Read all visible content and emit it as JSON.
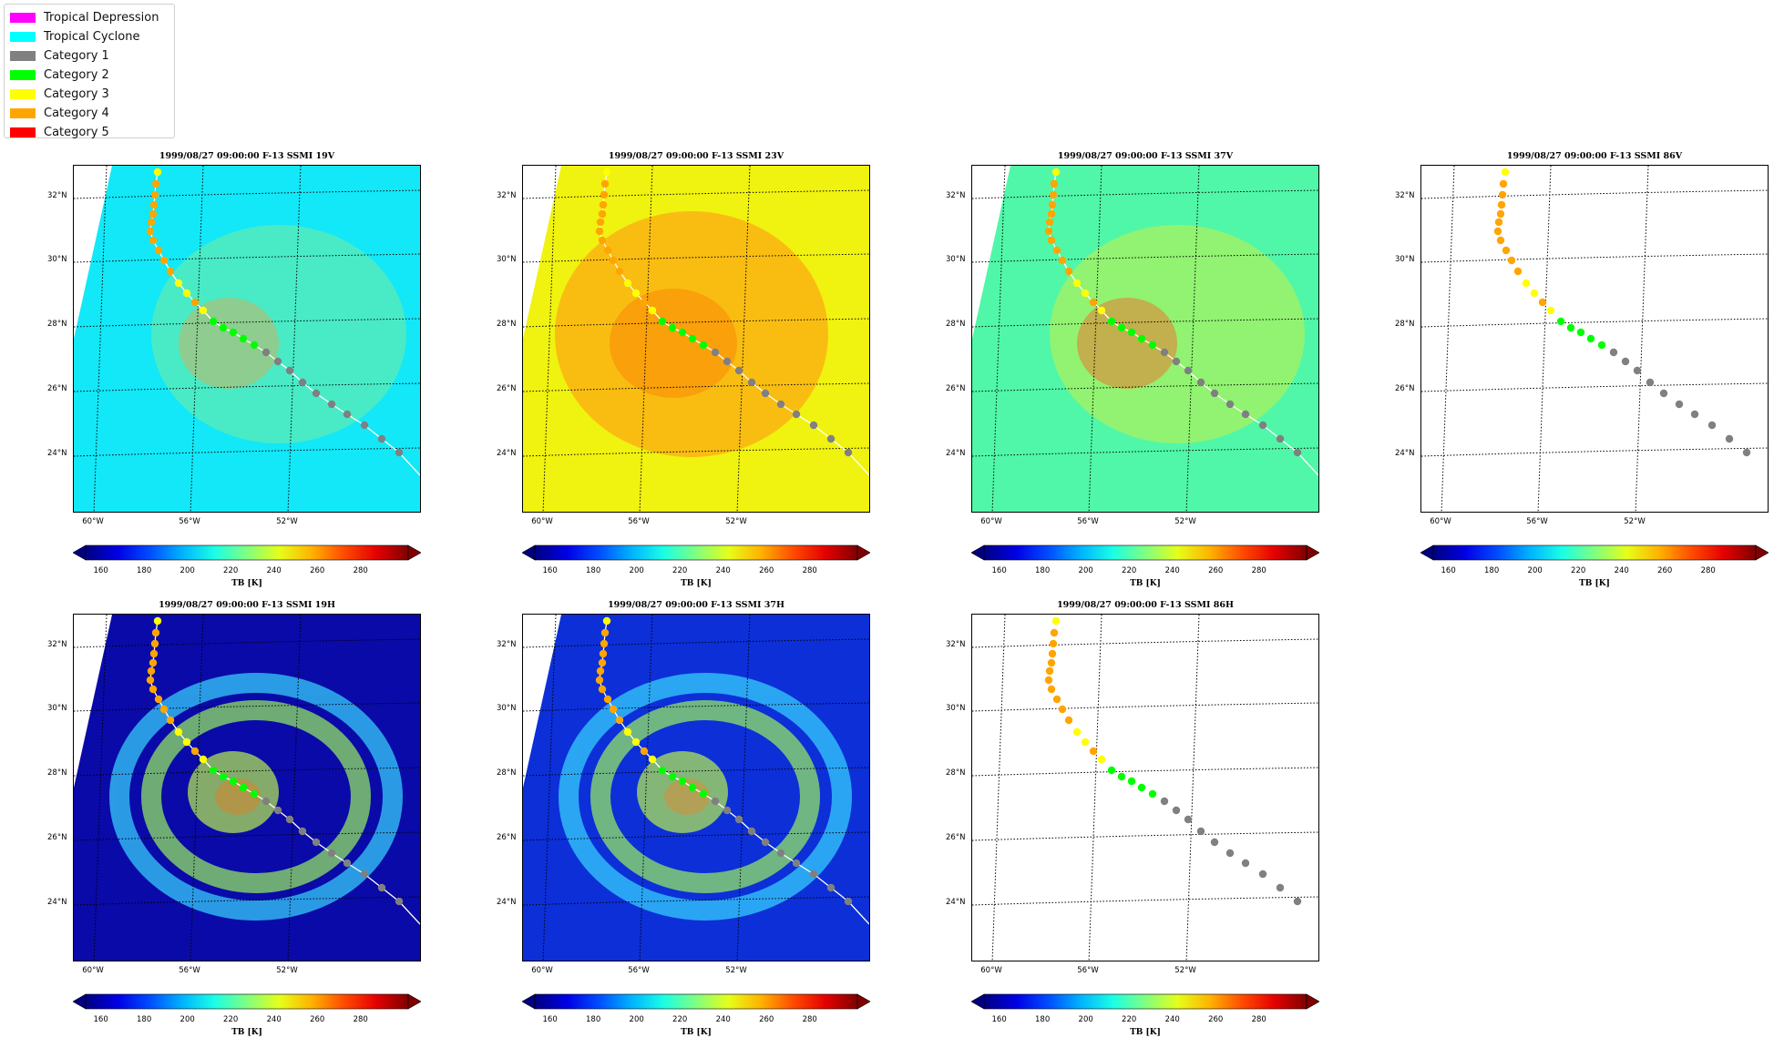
{
  "legend": {
    "items": [
      {
        "label": "Tropical Depression",
        "color": "#ff00ff"
      },
      {
        "label": "Tropical Cyclone",
        "color": "#00ffff"
      },
      {
        "label": "Category 1",
        "color": "#808080"
      },
      {
        "label": "Category 2",
        "color": "#00ff00"
      },
      {
        "label": "Category 3",
        "color": "#ffff00"
      },
      {
        "label": "Category 4",
        "color": "#ffa500"
      },
      {
        "label": "Category 5",
        "color": "#ff0000"
      }
    ]
  },
  "panels": [
    {
      "title": "1999/08/27 09:00:00  F-13 SSMI 19V",
      "base": "cyan",
      "features": "light",
      "track_line": true
    },
    {
      "title": "1999/08/27 09:00:00  F-13 SSMI 23V",
      "base": "yellow",
      "features": "warm",
      "track_line": true
    },
    {
      "title": "1999/08/27 09:00:00  F-13 SSMI 37V",
      "base": "green",
      "features": "medium",
      "track_line": true
    },
    {
      "title": "1999/08/27 09:00:00  F-13 SSMI 86V",
      "base": "none",
      "features": "none",
      "track_line": false
    },
    {
      "title": "1999/08/27 09:00:00  F-13 SSMI 19H",
      "base": "navy",
      "features": "rings",
      "track_line": true
    },
    {
      "title": "1999/08/27 09:00:00  F-13 SSMI 37H",
      "base": "navy2",
      "features": "rings",
      "track_line": true
    },
    {
      "title": "1999/08/27 09:00:00  F-13 SSMI 86H",
      "base": "none",
      "features": "none",
      "track_line": false
    }
  ],
  "axes": {
    "lat_labels": [
      "32°N",
      "30°N",
      "28°N",
      "26°N",
      "24°N"
    ],
    "lon_labels": [
      "60°W",
      "56°W",
      "52°W"
    ]
  },
  "colorbar": {
    "ticks": [
      "160",
      "180",
      "200",
      "220",
      "240",
      "260",
      "280"
    ],
    "label": "TB [K]",
    "colormap": "jet"
  },
  "track": {
    "categories": [
      "Category 3",
      "Category 4",
      "Category 4",
      "Category 4",
      "Category 4",
      "Category 4",
      "Category 4",
      "Category 4",
      "Category 4",
      "Category 4",
      "Category 4",
      "Category 3",
      "Category 3",
      "Category 4",
      "Category 3",
      "Category 2",
      "Category 2",
      "Category 2",
      "Category 2",
      "Category 2",
      "Category 1",
      "Category 1",
      "Category 1",
      "Category 1",
      "Category 1",
      "Category 1",
      "Category 1",
      "Category 1",
      "Category 1",
      "Category 1"
    ]
  }
}
